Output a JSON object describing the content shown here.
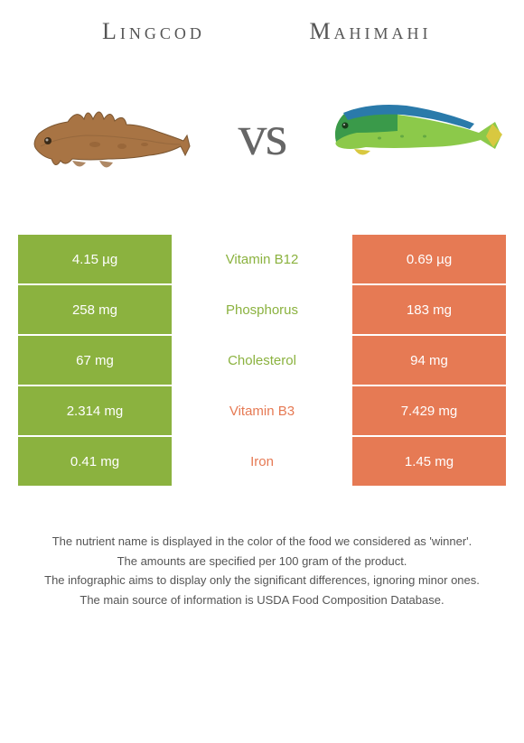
{
  "header": {
    "left_title": "Lingcod",
    "right_title": "Mahimahi",
    "vs_label": "vs"
  },
  "colors": {
    "left": "#8bb23f",
    "right": "#e67a54",
    "left_text": "#8bb23f",
    "right_text": "#e67a54"
  },
  "nutrients": [
    {
      "name": "Vitamin B12",
      "left": "4.15 µg",
      "right": "0.69 µg",
      "winner": "left"
    },
    {
      "name": "Phosphorus",
      "left": "258 mg",
      "right": "183 mg",
      "winner": "left"
    },
    {
      "name": "Cholesterol",
      "left": "67 mg",
      "right": "94 mg",
      "winner": "left"
    },
    {
      "name": "Vitamin B3",
      "left": "2.314 mg",
      "right": "7.429 mg",
      "winner": "right"
    },
    {
      "name": "Iron",
      "left": "0.41 mg",
      "right": "1.45 mg",
      "winner": "right"
    }
  ],
  "footer": {
    "line1": "The nutrient name is displayed in the color of the food we considered as 'winner'.",
    "line2": "The amounts are specified per 100 gram of the product.",
    "line3": "The infographic aims to display only the significant differences, ignoring minor ones.",
    "line4": "The main source of information is USDA Food Composition Database."
  }
}
